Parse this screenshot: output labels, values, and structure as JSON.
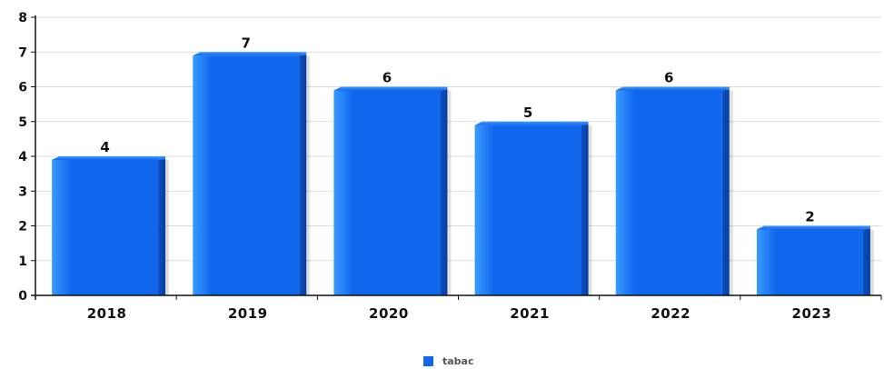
{
  "chart_data": {
    "type": "bar",
    "categories": [
      "2018",
      "2019",
      "2020",
      "2021",
      "2022",
      "2023"
    ],
    "series": [
      {
        "name": "tabac",
        "values": [
          4,
          7,
          6,
          5,
          6,
          2
        ]
      }
    ],
    "title": "",
    "xlabel": "",
    "ylabel": "",
    "ylim": [
      0,
      8
    ],
    "yticks": [
      "0",
      "1",
      "2",
      "3",
      "4",
      "5",
      "6",
      "7",
      "8"
    ],
    "grid": true,
    "legend": "bottom-center",
    "data_labels": [
      "4",
      "7",
      "6",
      "5",
      "6",
      "2"
    ]
  },
  "colors": {
    "bar": "#1166ee",
    "bar_light": "#3a9bff",
    "bar_dark": "#0a4fc4",
    "grid": "#dddddd",
    "axis": "#111111"
  }
}
